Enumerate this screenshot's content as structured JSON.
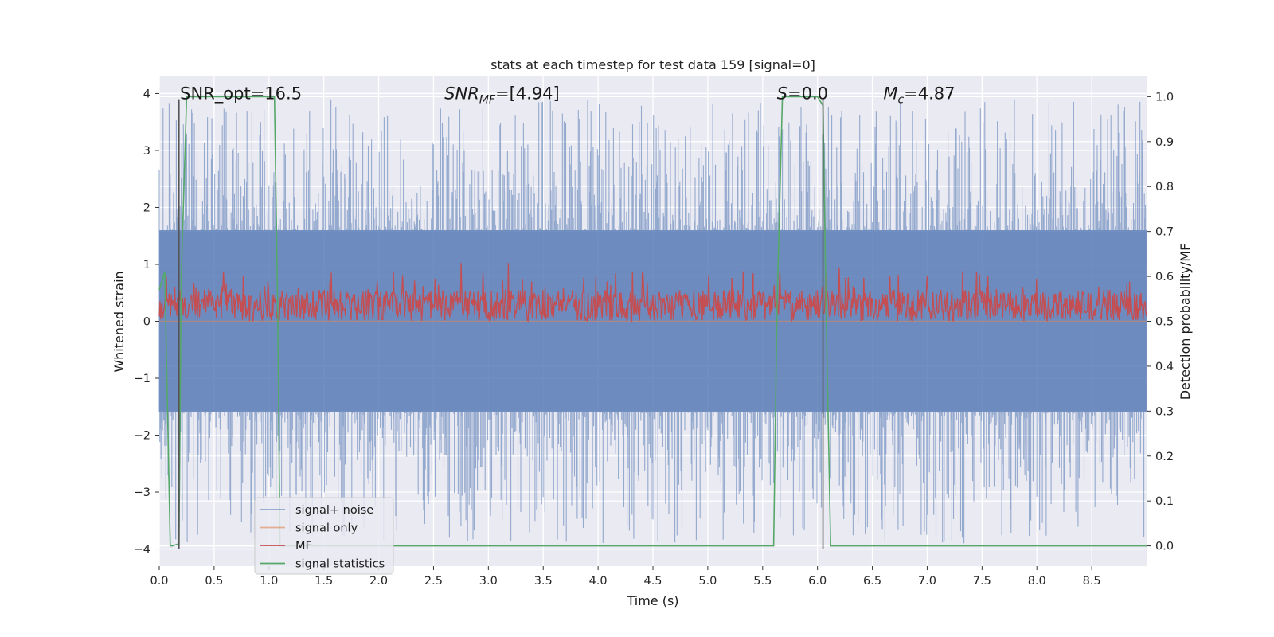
{
  "chart_data": {
    "type": "line",
    "title": "stats at each timestep for test data 159 [signal=0]",
    "xlabel": "Time (s)",
    "ylabel_left": "Whitened strain",
    "ylabel_right": "Detection probability/MF",
    "xlim": [
      0,
      9.0
    ],
    "ylim_left": [
      -4.3,
      4.3
    ],
    "ylim_right": [
      -0.045,
      1.045
    ],
    "xticks": [
      "0.0",
      "0.5",
      "1.0",
      "1.5",
      "2.0",
      "2.5",
      "3.0",
      "3.5",
      "4.0",
      "4.5",
      "5.0",
      "5.5",
      "6.0",
      "6.5",
      "7.0",
      "7.5",
      "8.0",
      "8.5"
    ],
    "yticks_left": [
      "4",
      "3",
      "2",
      "1",
      "0",
      "−1",
      "−2",
      "−3",
      "−4"
    ],
    "yticks_right": [
      "1.0",
      "0.9",
      "0.8",
      "0.7",
      "0.6",
      "0.5",
      "0.4",
      "0.3",
      "0.2",
      "0.1",
      "0.0"
    ],
    "grid": true,
    "annotations": [
      {
        "text": "SNR_opt=16.5",
        "x": 0.19,
        "y": 4.0
      },
      {
        "text": "SNR_MF=[4.94]",
        "x": 2.6,
        "y": 4.0
      },
      {
        "text": "S=0.0",
        "x": 5.63,
        "y": 4.0
      },
      {
        "text": "M_c=4.87",
        "x": 6.6,
        "y": 4.0
      }
    ],
    "vertical_lines": [
      {
        "x": 0.18,
        "y0": -4.0,
        "y1": 3.9
      },
      {
        "x": 6.05,
        "y0": -4.0,
        "y1": 3.9
      }
    ],
    "legend_position": "lower-left",
    "series": [
      {
        "name": "signal+ noise",
        "color": "#4c72b0",
        "axis": "left",
        "kind": "noise-band",
        "x_range": [
          0,
          9.0
        ],
        "core_range": [
          -1.6,
          1.6
        ],
        "peak_max": 3.9,
        "peak_min": -3.9
      },
      {
        "name": "signal only",
        "color": "#dd8452",
        "axis": "left",
        "x": [
          0,
          9.0
        ],
        "y": [
          0,
          0
        ]
      },
      {
        "name": "MF",
        "color": "#c44e52",
        "axis": "right",
        "kind": "noise-band",
        "x_range": [
          0,
          9.0
        ],
        "core_range": [
          0.5,
          0.57
        ],
        "peak_max": 0.63,
        "spikes": [
          {
            "x": 2.75,
            "y": 0.63
          },
          {
            "x": 3.18,
            "y": 0.63
          },
          {
            "x": 6.2,
            "y": 0.62
          }
        ]
      },
      {
        "name": "signal statistics",
        "color": "#55a868",
        "axis": "right",
        "x": [
          0.0,
          0.05,
          0.1,
          0.12,
          0.18,
          0.2,
          0.25,
          1.05,
          1.08,
          1.1,
          5.6,
          5.63,
          5.68,
          6.0,
          6.05,
          6.08,
          6.12,
          9.0
        ],
        "y": [
          0.57,
          0.61,
          0.0,
          0.0,
          0.005,
          0.6,
          1.0,
          1.0,
          0.52,
          0.0,
          0.0,
          0.52,
          1.0,
          1.0,
          0.98,
          0.5,
          0.0,
          0.0
        ]
      }
    ]
  }
}
